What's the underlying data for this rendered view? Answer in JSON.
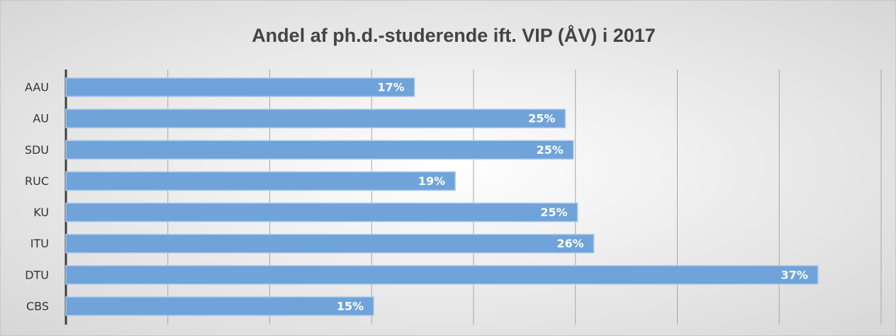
{
  "chart_data": {
    "type": "bar",
    "orientation": "horizontal",
    "title": "Andel af ph.d.-studerende ift. VIP (ÅV) i 2017",
    "categories": [
      "AAU",
      "AU",
      "SDU",
      "RUC",
      "KU",
      "ITU",
      "DTU",
      "CBS"
    ],
    "values": [
      17.1,
      24.5,
      24.9,
      19.1,
      25.1,
      25.9,
      36.9,
      15.1
    ],
    "value_labels": [
      "17%",
      "25%",
      "25%",
      "19%",
      "25%",
      "26%",
      "37%",
      "15%"
    ],
    "color": "#6fa3d9",
    "xlim": [
      0,
      40
    ],
    "xticks": [
      0,
      5,
      10,
      15,
      20,
      25,
      30,
      35,
      40
    ],
    "grid": true
  }
}
